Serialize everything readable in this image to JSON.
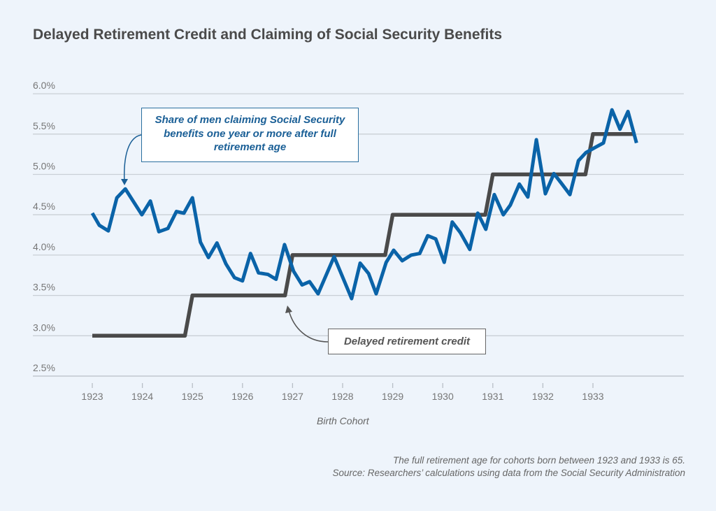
{
  "chart_data": {
    "type": "line",
    "title": "Delayed Retirement Credit and Claiming of Social Security Benefits",
    "xlabel": "Birth Cohort",
    "ylabel": "",
    "xlim": [
      1922.6,
      1934.5
    ],
    "ylim": [
      2.5,
      6.0
    ],
    "x_ticks": [
      "1923",
      "1924",
      "1925",
      "1926",
      "1927",
      "1928",
      "1929",
      "1930",
      "1931",
      "1932",
      "1933"
    ],
    "y_ticks": [
      "2.5%",
      "3.0%",
      "3.5%",
      "4.0%",
      "4.5%",
      "5.0%",
      "5.5%",
      "6.0%"
    ],
    "grid": "horizontal",
    "colors": {
      "share": "#0a63a8",
      "credit": "#4a4a4a",
      "grid": "#c9cfd6"
    },
    "series": [
      {
        "name": "Share of men claiming Social Security benefits one year or more after full retirement age",
        "x": [
          1923.0,
          1923.14,
          1923.32,
          1923.49,
          1923.66,
          1923.99,
          1924.16,
          1924.33,
          1924.51,
          1924.68,
          1924.83,
          1925.0,
          1925.16,
          1925.32,
          1925.49,
          1925.67,
          1925.84,
          1926.0,
          1926.16,
          1926.32,
          1926.51,
          1926.67,
          1926.84,
          1927.02,
          1927.19,
          1927.34,
          1927.51,
          1927.83,
          1928.18,
          1928.35,
          1928.52,
          1928.67,
          1928.87,
          1929.02,
          1929.19,
          1929.37,
          1929.54,
          1929.7,
          1929.86,
          1930.03,
          1930.19,
          1930.35,
          1930.54,
          1930.7,
          1930.86,
          1931.03,
          1931.21,
          1931.35,
          1931.53,
          1931.7,
          1931.87,
          1932.05,
          1932.22,
          1932.37,
          1932.54,
          1932.71,
          1932.86,
          1933.06,
          1933.21,
          1933.38,
          1933.54,
          1933.7,
          1933.87
        ],
        "values": [
          4.52,
          4.37,
          4.3,
          4.71,
          4.82,
          4.5,
          4.67,
          4.29,
          4.33,
          4.54,
          4.52,
          4.71,
          4.16,
          3.97,
          4.15,
          3.89,
          3.72,
          3.68,
          4.02,
          3.78,
          3.76,
          3.7,
          4.13,
          3.8,
          3.63,
          3.67,
          3.52,
          3.98,
          3.46,
          3.9,
          3.77,
          3.52,
          3.91,
          4.06,
          3.93,
          4.0,
          4.02,
          4.24,
          4.2,
          3.91,
          4.41,
          4.28,
          4.07,
          4.52,
          4.32,
          4.75,
          4.5,
          4.62,
          4.88,
          4.72,
          5.43,
          4.76,
          5.01,
          4.89,
          4.75,
          5.17,
          5.27,
          5.34,
          5.39,
          5.8,
          5.56,
          5.78,
          5.39
        ]
      },
      {
        "name": "Delayed retirement credit",
        "x": [
          1923.0,
          1924.85,
          1925.0,
          1926.85,
          1927.0,
          1928.85,
          1929.0,
          1930.85,
          1931.0,
          1932.85,
          1933.0,
          1933.85
        ],
        "values": [
          3.0,
          3.0,
          3.5,
          3.5,
          4.0,
          4.0,
          4.5,
          4.5,
          5.0,
          5.0,
          5.5,
          5.5
        ]
      }
    ],
    "annotations": {
      "share_label": "Share of men claiming Social Security benefits one year or more after full retirement age",
      "credit_label": "Delayed retirement credit"
    },
    "notes": [
      "The full retirement age for cohorts born between 1923 and 1933 is 65.",
      "Source: Researchers’ calculations using data from the Social Security Administration"
    ]
  }
}
